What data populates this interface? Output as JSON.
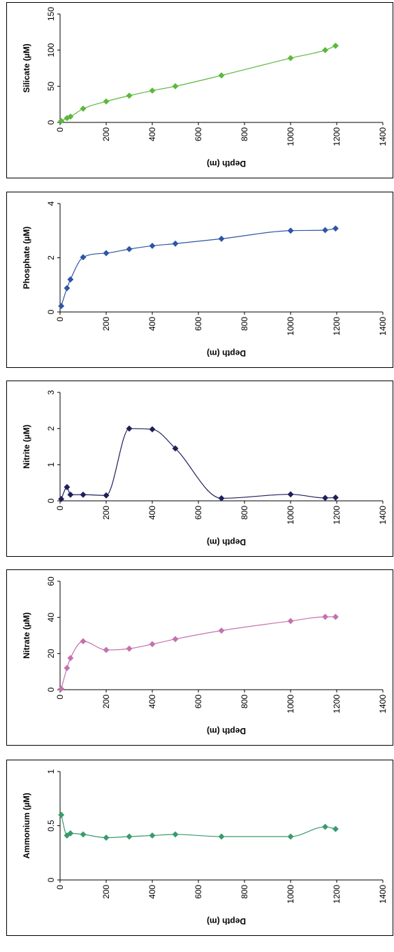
{
  "chart_data": [
    {
      "type": "line",
      "title": "",
      "xlabel": "Depth (m)",
      "ylabel": "Silicate (µM)",
      "xlim": [
        0,
        1400
      ],
      "ylim": [
        0,
        150
      ],
      "xticks": [
        "0",
        "200",
        "400",
        "600",
        "800",
        "1000",
        "1200",
        "1400"
      ],
      "yticks": [
        "0",
        "50",
        "100",
        "150"
      ],
      "grid": false,
      "legend": "none",
      "color": "#5cb83c",
      "marker": "diamond",
      "x": [
        5,
        30,
        45,
        100,
        200,
        300,
        400,
        500,
        700,
        1000,
        1150,
        1195
      ],
      "y": [
        2,
        6,
        8,
        19,
        29,
        37,
        44,
        50,
        65,
        89,
        100,
        106
      ]
    },
    {
      "type": "line",
      "title": "",
      "xlabel": "Depth (m)",
      "ylabel": "Phosphate (µM)",
      "xlim": [
        0,
        1400
      ],
      "ylim": [
        0,
        4
      ],
      "xticks": [
        "0",
        "200",
        "400",
        "600",
        "800",
        "1000",
        "1200",
        "1400"
      ],
      "yticks": [
        "0",
        "2",
        "4"
      ],
      "grid": false,
      "legend": "none",
      "color": "#2f55a4",
      "marker": "diamond",
      "x": [
        5,
        30,
        45,
        100,
        200,
        300,
        400,
        500,
        700,
        1000,
        1150,
        1195
      ],
      "y": [
        0.22,
        0.88,
        1.2,
        2.02,
        2.17,
        2.32,
        2.44,
        2.52,
        2.7,
        3.0,
        3.02,
        3.08
      ]
    },
    {
      "type": "line",
      "title": "",
      "xlabel": "Depth (m)",
      "ylabel": "Nitrite (µM)",
      "xlim": [
        0,
        1400
      ],
      "ylim": [
        0,
        3
      ],
      "xticks": [
        "0",
        "200",
        "400",
        "600",
        "800",
        "1000",
        "1200",
        "1400"
      ],
      "yticks": [
        "0",
        "1",
        "2",
        "3"
      ],
      "grid": false,
      "legend": "none",
      "color": "#1f1f5c",
      "marker": "diamond",
      "x": [
        5,
        30,
        45,
        100,
        200,
        300,
        400,
        500,
        700,
        1000,
        1150,
        1195
      ],
      "y": [
        0.05,
        0.38,
        0.17,
        0.17,
        0.15,
        2.0,
        1.98,
        1.45,
        0.07,
        0.18,
        0.08,
        0.09
      ]
    },
    {
      "type": "line",
      "title": "",
      "xlabel": "Depth (m)",
      "ylabel": "Nitrate (µM)",
      "xlim": [
        0,
        1400
      ],
      "ylim": [
        0,
        60
      ],
      "xticks": [
        "0",
        "200",
        "400",
        "600",
        "800",
        "1000",
        "1200",
        "1400"
      ],
      "yticks": [
        "0",
        "20",
        "40",
        "60"
      ],
      "grid": false,
      "legend": "none",
      "color": "#c472ae",
      "marker": "diamond",
      "x": [
        5,
        30,
        45,
        100,
        200,
        300,
        400,
        500,
        700,
        1000,
        1150,
        1195
      ],
      "y": [
        0.5,
        12,
        17.5,
        26.8,
        22,
        22.7,
        25.2,
        28,
        32.7,
        38,
        40.3,
        40.3
      ]
    },
    {
      "type": "line",
      "title": "",
      "xlabel": "Depth (m)",
      "ylabel": "Ammonium (µM)",
      "xlim": [
        0,
        1400
      ],
      "ylim": [
        0,
        1
      ],
      "xticks": [
        "0",
        "200",
        "400",
        "600",
        "800",
        "1000",
        "1200",
        "1400"
      ],
      "yticks": [
        "0",
        "0.5",
        "1"
      ],
      "grid": false,
      "legend": "none",
      "color": "#3a9a6c",
      "marker": "diamond",
      "x": [
        5,
        30,
        45,
        100,
        200,
        300,
        400,
        500,
        700,
        1000,
        1150,
        1195
      ],
      "y": [
        0.6,
        0.41,
        0.43,
        0.42,
        0.39,
        0.4,
        0.41,
        0.42,
        0.4,
        0.4,
        0.49,
        0.47
      ]
    }
  ]
}
